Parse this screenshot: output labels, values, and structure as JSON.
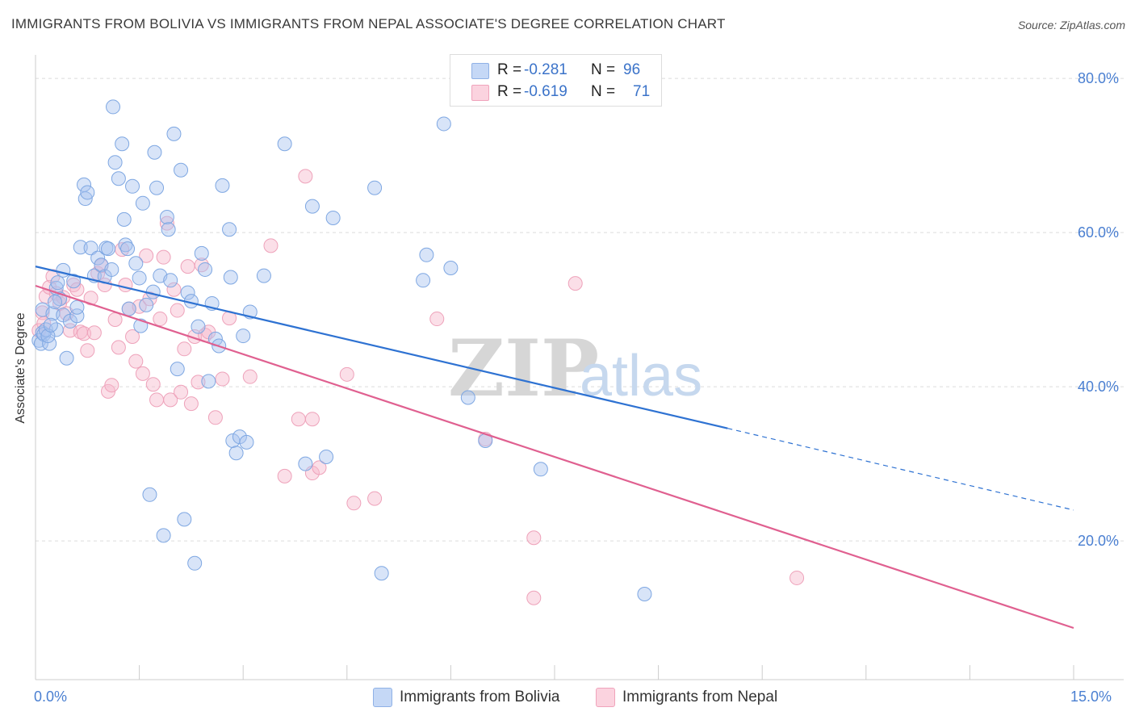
{
  "title": "IMMIGRANTS FROM BOLIVIA VS IMMIGRANTS FROM NEPAL ASSOCIATE'S DEGREE CORRELATION CHART",
  "source": "Source: ZipAtlas.com",
  "watermark": {
    "zip": "ZIP",
    "atlas": "atlas"
  },
  "stats": [
    {
      "r_label": "R =",
      "r_value": "-0.281",
      "n_label": "N =",
      "n_value": "96",
      "color": "#a8c4f0"
    },
    {
      "r_label": "R =",
      "r_value": "-0.619",
      "n_label": "N =",
      "n_value": "71",
      "color": "#f6b8cb"
    }
  ],
  "legend": [
    {
      "label": "Immigrants from Bolivia",
      "color": "#a8c4f0"
    },
    {
      "label": "Immigrants from Nepal",
      "color": "#f6b8cb"
    }
  ],
  "axis": {
    "ylabel": "Associate's Degree",
    "x_ticks": [
      "0.0%",
      "15.0%"
    ],
    "y_ticks": [
      "80.0%",
      "60.0%",
      "40.0%",
      "20.0%"
    ]
  },
  "chart_data": {
    "type": "scatter",
    "title": "IMMIGRANTS FROM BOLIVIA VS IMMIGRANTS FROM NEPAL ASSOCIATE'S DEGREE CORRELATION CHART",
    "xlabel": "",
    "ylabel": "Associate's Degree",
    "xlim": [
      0,
      15
    ],
    "ylim": [
      2,
      82
    ],
    "y_gridlines": [
      20,
      40,
      60,
      80
    ],
    "colors": {
      "bolivia_fill": "#a8c4f0",
      "bolivia_line": "#2e72d2",
      "nepal_fill": "#f6b8cb",
      "nepal_line": "#e06090"
    },
    "series": [
      {
        "name": "Immigrants from Bolivia",
        "trend": {
          "x0": 0,
          "y0": 55.6,
          "x1": 10.0,
          "y1": 34.6,
          "dashed_to_x": 15,
          "dashed_to_y": 24.0
        },
        "points": [
          [
            0.05,
            46.0
          ],
          [
            0.08,
            45.6
          ],
          [
            0.1,
            47.0
          ],
          [
            0.12,
            46.8
          ],
          [
            0.1,
            50.0
          ],
          [
            0.15,
            47.4
          ],
          [
            0.2,
            45.6
          ],
          [
            0.25,
            49.5
          ],
          [
            0.3,
            47.4
          ],
          [
            0.35,
            51.4
          ],
          [
            0.45,
            43.7
          ],
          [
            0.4,
            49.3
          ],
          [
            0.5,
            48.5
          ],
          [
            0.55,
            53.7
          ],
          [
            0.6,
            49.2
          ],
          [
            0.65,
            58.1
          ],
          [
            0.7,
            66.2
          ],
          [
            0.72,
            64.4
          ],
          [
            0.75,
            65.2
          ],
          [
            0.8,
            58.0
          ],
          [
            0.85,
            54.4
          ],
          [
            0.9,
            56.7
          ],
          [
            0.95,
            55.8
          ],
          [
            1.0,
            54.3
          ],
          [
            1.02,
            58.0
          ],
          [
            1.05,
            57.9
          ],
          [
            1.1,
            55.2
          ],
          [
            1.12,
            76.3
          ],
          [
            1.15,
            69.1
          ],
          [
            1.2,
            67.0
          ],
          [
            1.25,
            71.5
          ],
          [
            1.28,
            61.7
          ],
          [
            1.3,
            58.4
          ],
          [
            1.33,
            57.9
          ],
          [
            1.35,
            50.1
          ],
          [
            1.4,
            66.0
          ],
          [
            1.45,
            56.0
          ],
          [
            1.5,
            54.1
          ],
          [
            1.52,
            47.9
          ],
          [
            1.55,
            63.8
          ],
          [
            1.6,
            50.6
          ],
          [
            1.65,
            26.0
          ],
          [
            1.7,
            52.3
          ],
          [
            1.72,
            70.4
          ],
          [
            1.75,
            65.8
          ],
          [
            1.8,
            54.4
          ],
          [
            1.85,
            20.7
          ],
          [
            1.9,
            62.0
          ],
          [
            1.92,
            60.4
          ],
          [
            1.95,
            53.8
          ],
          [
            2.0,
            72.8
          ],
          [
            2.05,
            42.3
          ],
          [
            2.1,
            68.1
          ],
          [
            2.15,
            22.8
          ],
          [
            2.2,
            52.2
          ],
          [
            2.25,
            51.1
          ],
          [
            2.3,
            17.1
          ],
          [
            2.35,
            47.8
          ],
          [
            2.4,
            57.3
          ],
          [
            2.45,
            55.2
          ],
          [
            2.5,
            40.7
          ],
          [
            2.55,
            50.8
          ],
          [
            2.6,
            46.2
          ],
          [
            2.65,
            45.3
          ],
          [
            2.7,
            66.1
          ],
          [
            2.8,
            60.4
          ],
          [
            2.82,
            54.2
          ],
          [
            2.85,
            33.0
          ],
          [
            2.9,
            31.4
          ],
          [
            2.95,
            33.5
          ],
          [
            3.0,
            46.6
          ],
          [
            3.05,
            32.8
          ],
          [
            3.1,
            49.7
          ],
          [
            3.3,
            54.4
          ],
          [
            3.6,
            71.5
          ],
          [
            3.9,
            30.0
          ],
          [
            4.0,
            63.4
          ],
          [
            4.2,
            30.9
          ],
          [
            4.3,
            61.9
          ],
          [
            4.9,
            65.8
          ],
          [
            5.0,
            15.8
          ],
          [
            5.6,
            53.8
          ],
          [
            5.65,
            57.1
          ],
          [
            5.9,
            74.1
          ],
          [
            6.0,
            55.4
          ],
          [
            6.25,
            38.6
          ],
          [
            6.5,
            33.0
          ],
          [
            7.3,
            29.3
          ],
          [
            8.8,
            13.1
          ],
          [
            0.3,
            52.8
          ],
          [
            0.18,
            46.6
          ],
          [
            0.22,
            48.0
          ],
          [
            0.28,
            51.0
          ],
          [
            0.32,
            53.5
          ],
          [
            0.4,
            55.1
          ],
          [
            0.6,
            50.3
          ]
        ]
      },
      {
        "name": "Immigrants from Nepal",
        "trend": {
          "x0": 0,
          "y0": 53.1,
          "x1": 15,
          "y1": 8.7
        },
        "points": [
          [
            0.05,
            47.3
          ],
          [
            0.1,
            49.6
          ],
          [
            0.15,
            51.7
          ],
          [
            0.2,
            52.9
          ],
          [
            0.25,
            54.3
          ],
          [
            0.3,
            52.1
          ],
          [
            0.35,
            50.8
          ],
          [
            0.4,
            51.6
          ],
          [
            0.45,
            49.5
          ],
          [
            0.5,
            47.3
          ],
          [
            0.55,
            53.2
          ],
          [
            0.6,
            52.6
          ],
          [
            0.65,
            47.1
          ],
          [
            0.7,
            46.9
          ],
          [
            0.75,
            44.7
          ],
          [
            0.8,
            51.5
          ],
          [
            0.85,
            47.0
          ],
          [
            0.9,
            54.7
          ],
          [
            0.95,
            55.7
          ],
          [
            1.0,
            53.2
          ],
          [
            1.05,
            39.4
          ],
          [
            1.1,
            40.2
          ],
          [
            1.15,
            48.7
          ],
          [
            1.2,
            45.1
          ],
          [
            1.25,
            57.8
          ],
          [
            1.3,
            53.2
          ],
          [
            1.35,
            50.1
          ],
          [
            1.4,
            46.5
          ],
          [
            1.45,
            43.3
          ],
          [
            1.5,
            50.4
          ],
          [
            1.55,
            41.7
          ],
          [
            1.6,
            57.0
          ],
          [
            1.65,
            51.4
          ],
          [
            1.7,
            40.3
          ],
          [
            1.75,
            38.3
          ],
          [
            1.8,
            48.8
          ],
          [
            1.85,
            56.8
          ],
          [
            1.9,
            61.2
          ],
          [
            1.95,
            38.3
          ],
          [
            2.0,
            52.6
          ],
          [
            2.05,
            49.9
          ],
          [
            2.1,
            39.3
          ],
          [
            2.15,
            44.9
          ],
          [
            2.2,
            55.6
          ],
          [
            2.25,
            37.8
          ],
          [
            2.3,
            46.5
          ],
          [
            2.35,
            40.6
          ],
          [
            2.4,
            55.8
          ],
          [
            2.45,
            46.7
          ],
          [
            2.5,
            47.1
          ],
          [
            2.6,
            36.0
          ],
          [
            2.7,
            41.0
          ],
          [
            2.8,
            48.9
          ],
          [
            3.1,
            41.3
          ],
          [
            3.4,
            58.3
          ],
          [
            3.6,
            28.4
          ],
          [
            3.8,
            35.8
          ],
          [
            3.9,
            67.3
          ],
          [
            4.0,
            28.8
          ],
          [
            4.1,
            29.5
          ],
          [
            4.5,
            41.6
          ],
          [
            4.6,
            24.9
          ],
          [
            4.9,
            25.5
          ],
          [
            5.8,
            48.8
          ],
          [
            6.5,
            33.2
          ],
          [
            7.2,
            20.4
          ],
          [
            7.2,
            12.6
          ],
          [
            7.8,
            53.4
          ],
          [
            11.0,
            15.2
          ],
          [
            0.12,
            48.2
          ],
          [
            4.0,
            35.8
          ]
        ]
      }
    ]
  }
}
